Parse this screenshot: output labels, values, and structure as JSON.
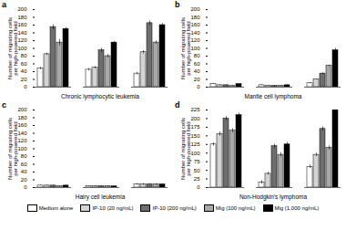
{
  "chart_data": [
    {
      "type": "bar",
      "panel_label": "a",
      "title": "Chronic lymphocytic leukemia",
      "y_label": "Number of migrating cells per high-powered field",
      "categories": [
        null,
        null,
        null
      ],
      "ylim": [
        0,
        200
      ],
      "yticks": [
        0,
        20,
        40,
        60,
        80,
        100,
        120,
        140,
        160,
        180,
        200
      ],
      "series": [
        {
          "name": "Medium alone",
          "color": "#ffffff",
          "values": [
            48,
            45,
            35
          ],
          "errors": [
            3,
            3,
            3
          ]
        },
        {
          "name": "IP-10 (20 ng/mL)",
          "color": "#d4d4d4",
          "values": [
            85,
            50,
            90
          ],
          "errors": [
            3,
            3,
            4
          ]
        },
        {
          "name": "IP-10 (200 ng/mL)",
          "color": "#6e6e6e",
          "values": [
            155,
            95,
            165
          ],
          "errors": [
            6,
            5,
            6
          ]
        },
        {
          "name": "Mig (100 ng/mL)",
          "color": "#a8a8a8",
          "values": [
            115,
            80,
            115
          ],
          "errors": [
            8,
            4,
            4
          ]
        },
        {
          "name": "Mig (1,000 ng/mL)",
          "color": "#000000",
          "values": [
            150,
            115,
            160
          ],
          "errors": [
            4,
            3,
            4
          ]
        }
      ]
    },
    {
      "type": "bar",
      "panel_label": "b",
      "title": "Mantle cell lymphoma",
      "y_label": "Number of migrating cells per high-powered field",
      "categories": [
        null,
        null,
        null
      ],
      "ylim": [
        0,
        200
      ],
      "yticks": [
        0,
        20,
        40,
        60,
        80,
        100,
        120,
        140,
        160,
        180,
        200
      ],
      "series": [
        {
          "name": "Medium alone",
          "color": "#ffffff",
          "values": [
            8,
            5,
            10
          ],
          "errors": [
            1,
            1,
            1
          ]
        },
        {
          "name": "IP-10 (20 ng/mL)",
          "color": "#d4d4d4",
          "values": [
            5,
            3,
            20
          ],
          "errors": [
            1,
            1,
            1
          ]
        },
        {
          "name": "IP-10 (200 ng/mL)",
          "color": "#6e6e6e",
          "values": [
            5,
            3,
            35
          ],
          "errors": [
            1,
            1,
            2
          ]
        },
        {
          "name": "Mig (100 ng/mL)",
          "color": "#a8a8a8",
          "values": [
            3,
            3,
            55
          ],
          "errors": [
            1,
            1,
            2
          ]
        },
        {
          "name": "Mig (1,000 ng/mL)",
          "color": "#000000",
          "values": [
            8,
            5,
            95
          ],
          "errors": [
            1,
            1,
            5
          ]
        }
      ]
    },
    {
      "type": "bar",
      "panel_label": "c",
      "title": "Hairy cell leukemia",
      "y_label": "Number of migrating cells per high-powered field",
      "categories": [
        null,
        null,
        null
      ],
      "ylim": [
        0,
        200
      ],
      "yticks": [
        0,
        20,
        40,
        60,
        80,
        100,
        120,
        140,
        160,
        180,
        200
      ],
      "series": [
        {
          "name": "Medium alone",
          "color": "#ffffff",
          "values": [
            5,
            3,
            8
          ],
          "errors": [
            1,
            1,
            2
          ]
        },
        {
          "name": "IP-10 (20 ng/mL)",
          "color": "#d4d4d4",
          "values": [
            5,
            3,
            8
          ],
          "errors": [
            1,
            1,
            2
          ]
        },
        {
          "name": "IP-10 (200 ng/mL)",
          "color": "#6e6e6e",
          "values": [
            5,
            3,
            8
          ],
          "errors": [
            1,
            1,
            2
          ]
        },
        {
          "name": "Mig (100 ng/mL)",
          "color": "#a8a8a8",
          "values": [
            3,
            3,
            8
          ],
          "errors": [
            1,
            1,
            2
          ]
        },
        {
          "name": "Mig (1,000 ng/mL)",
          "color": "#000000",
          "values": [
            5,
            3,
            8
          ],
          "errors": [
            1,
            1,
            2
          ]
        }
      ]
    },
    {
      "type": "bar",
      "panel_label": "d",
      "title": "Non-Hodgkin's lymphoma",
      "y_label": "Number of migrating cells per high-powered field",
      "categories": [
        null,
        null,
        null
      ],
      "ylim": [
        0,
        225
      ],
      "yticks": [
        0,
        25,
        50,
        75,
        100,
        125,
        150,
        175,
        200,
        225
      ],
      "series": [
        {
          "name": "Medium alone",
          "color": "#ffffff",
          "values": [
            125,
            15,
            60
          ],
          "errors": [
            5,
            5,
            5
          ]
        },
        {
          "name": "IP-10 (20 ng/mL)",
          "color": "#d4d4d4",
          "values": [
            155,
            40,
            95
          ],
          "errors": [
            6,
            4,
            5
          ]
        },
        {
          "name": "IP-10 (200 ng/mL)",
          "color": "#6e6e6e",
          "values": [
            200,
            120,
            170
          ],
          "errors": [
            6,
            6,
            6
          ]
        },
        {
          "name": "Mig (100 ng/mL)",
          "color": "#a8a8a8",
          "values": [
            165,
            95,
            115
          ],
          "errors": [
            6,
            6,
            6
          ]
        },
        {
          "name": "Mig (1,000 ng/mL)",
          "color": "#000000",
          "values": [
            210,
            125,
            225
          ],
          "errors": [
            6,
            6,
            6
          ]
        }
      ]
    }
  ]
}
